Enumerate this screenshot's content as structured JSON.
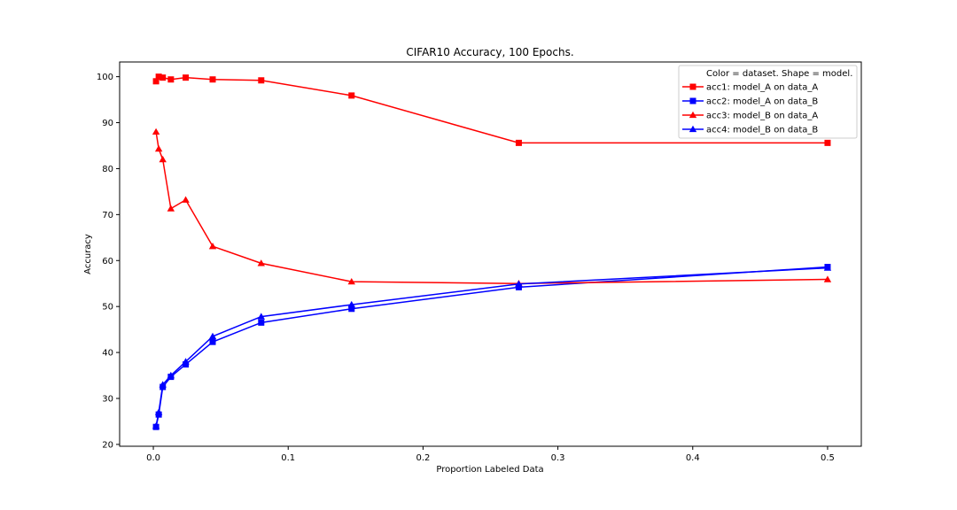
{
  "chart_data": {
    "type": "line",
    "title": "CIFAR10 Accuracy, 100 Epochs.",
    "xlabel": "Proportion Labeled Data",
    "ylabel": "Accuracy",
    "xlim": [
      -0.025,
      0.525
    ],
    "ylim": [
      19.6,
      103.2
    ],
    "xticks": [
      0.0,
      0.1,
      0.2,
      0.3,
      0.4,
      0.5
    ],
    "xtick_labels": [
      "0.0",
      "0.1",
      "0.2",
      "0.3",
      "0.4",
      "0.5"
    ],
    "yticks": [
      20,
      30,
      40,
      50,
      60,
      70,
      80,
      90,
      100
    ],
    "ytick_labels": [
      "20",
      "30",
      "40",
      "50",
      "60",
      "70",
      "80",
      "90",
      "100"
    ],
    "grid": false,
    "legend": {
      "placement": "top-right",
      "title": "Color = dataset. Shape = model."
    },
    "x": [
      0.002,
      0.004,
      0.007,
      0.013,
      0.024,
      0.044,
      0.08,
      0.147,
      0.271,
      0.5
    ],
    "series": [
      {
        "name": "acc1: model_A on data_A",
        "color": "#ff0000",
        "marker": "square",
        "values": [
          99.0,
          100.0,
          99.8,
          99.4,
          99.8,
          99.4,
          99.2,
          95.9,
          85.6,
          85.6
        ]
      },
      {
        "name": "acc2: model_A on data_B",
        "color": "#0000ff",
        "marker": "square",
        "values": [
          23.8,
          26.5,
          32.5,
          34.7,
          37.4,
          42.3,
          46.5,
          49.5,
          54.2,
          58.6
        ]
      },
      {
        "name": "acc3: model_B on data_A",
        "color": "#ff0000",
        "marker": "triangle",
        "values": [
          88.0,
          84.3,
          82.0,
          71.3,
          73.2,
          63.1,
          59.4,
          55.4,
          55.0,
          55.9
        ]
      },
      {
        "name": "acc4: model_B on data_B",
        "color": "#0000ff",
        "marker": "triangle",
        "values": [
          24.0,
          27.0,
          33.0,
          35.0,
          38.0,
          43.5,
          47.8,
          50.4,
          54.9,
          58.4
        ]
      }
    ]
  }
}
